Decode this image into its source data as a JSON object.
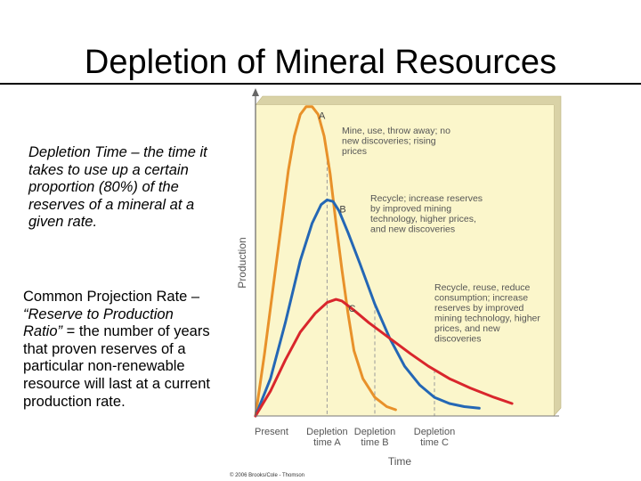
{
  "slide": {
    "title": "Depletion of Mineral Resources",
    "definition_term": "Depletion Time",
    "definition_text": " – the time it takes to use up a certain proportion (80%) of the reserves of a mineral at a given rate.",
    "projection_lead": "Common Projection Rate – ",
    "projection_term": "“Reserve to Production Ratio”",
    "projection_text": " = the number of years that proven reserves of a particular non-renewable resource will last at a current production rate.",
    "credit": "© 2006 Brooks/Cole - Thomson"
  },
  "chart_data": {
    "type": "line",
    "title": "",
    "xlabel": "Time",
    "ylabel": "Production",
    "grid": false,
    "x_axis_labels": [
      {
        "lines": [
          "Present"
        ]
      },
      {
        "lines": [
          "Depletion",
          "time A"
        ]
      },
      {
        "lines": [
          "Depletion",
          "time B"
        ]
      },
      {
        "lines": [
          "Depletion",
          "time C"
        ]
      }
    ],
    "series": [
      {
        "name": "A",
        "label": "Mine, use, throw away; no new discoveries; rising prices",
        "color": "#e8912a",
        "points": [
          [
            0,
            0
          ],
          [
            3,
            20
          ],
          [
            6,
            42
          ],
          [
            9,
            64
          ],
          [
            11,
            79
          ],
          [
            13,
            90
          ],
          [
            15,
            97
          ],
          [
            17,
            99.5
          ],
          [
            19,
            99.5
          ],
          [
            21,
            97
          ],
          [
            23,
            90
          ],
          [
            25,
            78
          ],
          [
            27,
            62
          ],
          [
            29,
            47
          ],
          [
            31,
            33
          ],
          [
            33,
            21
          ],
          [
            36,
            12
          ],
          [
            40,
            6
          ],
          [
            44,
            3
          ],
          [
            47,
            2
          ]
        ]
      },
      {
        "name": "B",
        "label": "Recycle; increase reserves by improved mining technology, higher prices, and new discoveries",
        "color": "#2467b5",
        "points": [
          [
            0,
            0
          ],
          [
            5,
            12
          ],
          [
            10,
            30
          ],
          [
            15,
            50
          ],
          [
            19,
            62
          ],
          [
            22,
            68
          ],
          [
            24,
            69.5
          ],
          [
            26,
            69
          ],
          [
            28,
            66
          ],
          [
            31,
            59
          ],
          [
            35,
            49
          ],
          [
            40,
            36
          ],
          [
            45,
            25
          ],
          [
            50,
            16
          ],
          [
            55,
            10
          ],
          [
            60,
            6
          ],
          [
            65,
            4
          ],
          [
            70,
            3
          ],
          [
            75,
            2.5
          ]
        ]
      },
      {
        "name": "C",
        "label": "Recycle, reuse, reduce consumption; increase reserves by improved mining technology, higher prices, and new discoveries",
        "color": "#d9262c",
        "points": [
          [
            0,
            0
          ],
          [
            5,
            8
          ],
          [
            10,
            18
          ],
          [
            15,
            27
          ],
          [
            20,
            33
          ],
          [
            24,
            36.5
          ],
          [
            27,
            37.5
          ],
          [
            29,
            37
          ],
          [
            33,
            34
          ],
          [
            38,
            30
          ],
          [
            45,
            25
          ],
          [
            52,
            20
          ],
          [
            58,
            16
          ],
          [
            65,
            12
          ],
          [
            72,
            9
          ],
          [
            80,
            6
          ],
          [
            86,
            4
          ]
        ]
      }
    ],
    "depletion_times": [
      {
        "curve": "A",
        "x": 24
      },
      {
        "curve": "B",
        "x": 40
      },
      {
        "curve": "C",
        "x": 60
      }
    ]
  }
}
